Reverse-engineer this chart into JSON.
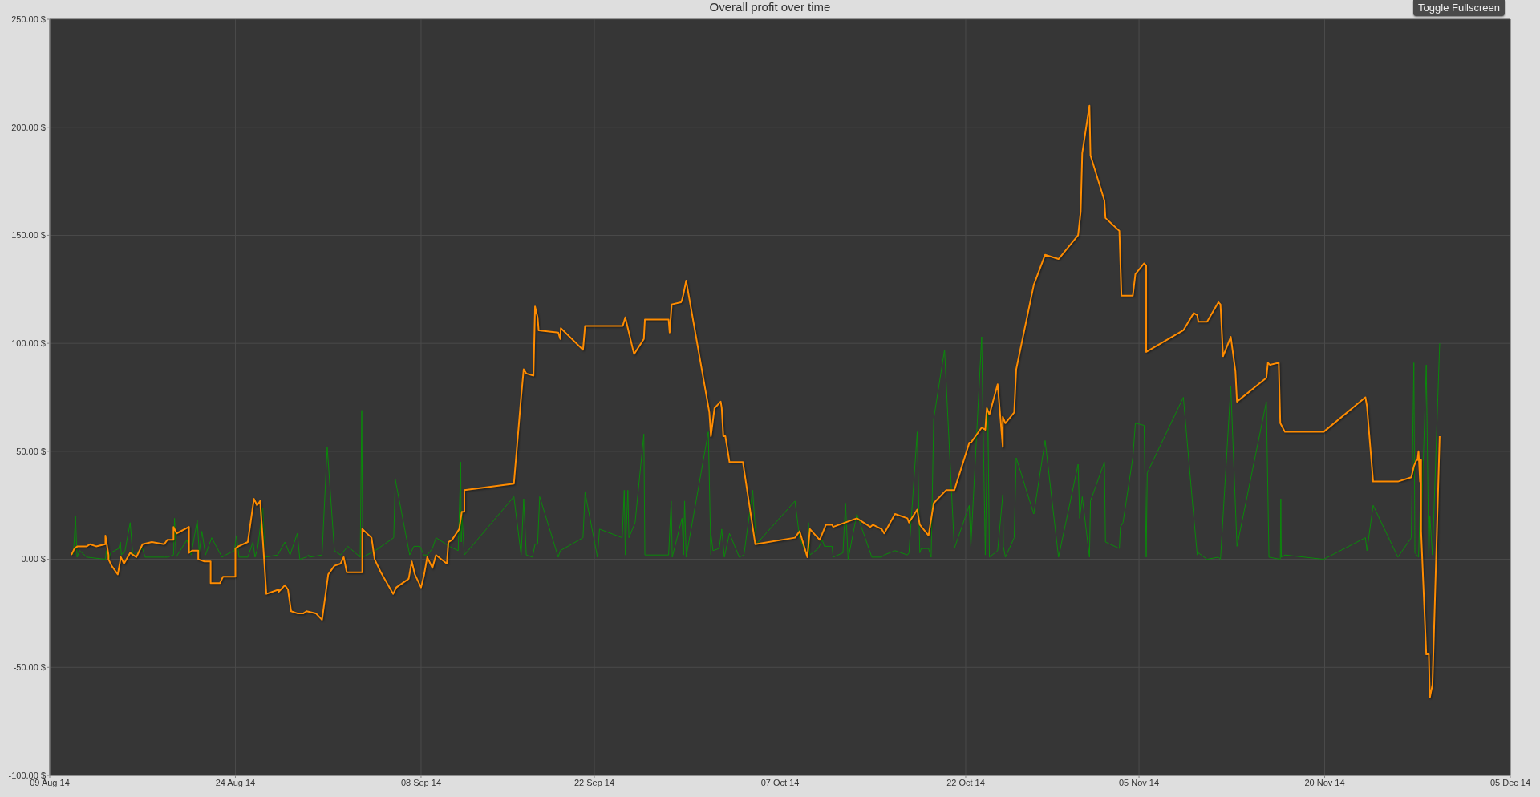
{
  "chart_data": {
    "type": "line",
    "title": "Overall profit over time",
    "annotations": [
      "Toggle Fullscreen"
    ],
    "xlim": [
      "2014-08-09",
      "2014-12-05"
    ],
    "xticks": [
      {
        "value": "2014-08-09",
        "label": "09 Aug 14"
      },
      {
        "value": "2014-08-24",
        "label": "24 Aug 14"
      },
      {
        "value": "2014-09-08",
        "label": "08 Sep 14"
      },
      {
        "value": "2014-09-22",
        "label": "22 Sep 14"
      },
      {
        "value": "2014-10-07",
        "label": "07 Oct 14"
      },
      {
        "value": "2014-10-22",
        "label": "22 Oct 14"
      },
      {
        "value": "2014-11-05",
        "label": "05 Nov 14"
      },
      {
        "value": "2014-11-20",
        "label": "20 Nov 14"
      },
      {
        "value": "2014-12-05",
        "label": "05 Dec 14"
      }
    ],
    "ylim": [
      -100,
      250
    ],
    "yticks": [
      {
        "value": -100,
        "label": "-100.00 $"
      },
      {
        "value": -50,
        "label": "-50.00 $"
      },
      {
        "value": 0,
        "label": "0.00 $"
      },
      {
        "value": 50,
        "label": "50.00 $"
      },
      {
        "value": 100,
        "label": "100.00 $"
      },
      {
        "value": 150,
        "label": "150.00 $"
      },
      {
        "value": 200,
        "label": "200.00 $"
      },
      {
        "value": 250,
        "label": "250.00 $"
      }
    ],
    "grid": true,
    "series": [
      {
        "color": "#0a8a0a",
        "x": [
          "2014-08-10T22:00",
          "2014-08-11T02:00",
          "2014-08-11T05:00",
          "2014-08-11T10:00",
          "2014-08-12T00:00",
          "2014-08-13T12:00",
          "2014-08-13T14:00",
          "2014-08-13T19:00",
          "2014-08-13T22:00",
          "2014-08-14T14:00",
          "2014-08-14T17:00",
          "2014-08-14T19:00",
          "2014-08-15T02:00",
          "2014-08-15T12:00",
          "2014-08-15T17:00",
          "2014-08-16T12:00",
          "2014-08-16T17:00",
          "2014-08-18T07:00",
          "2014-08-18T12:00",
          "2014-08-19T00:00",
          "2014-08-19T02:00",
          "2014-08-19T05:00",
          "2014-08-20T02:00",
          "2014-08-20T10:00",
          "2014-08-20T22:00",
          "2014-08-21T02:00",
          "2014-08-21T07:00",
          "2014-08-21T14:00",
          "2014-08-22T02:00",
          "2014-08-22T22:00",
          "2014-08-23T05:00",
          "2014-08-23T22:00",
          "2014-08-24T02:00",
          "2014-08-24T07:00",
          "2014-08-25T00:00",
          "2014-08-25T10:00",
          "2014-08-25T14:00",
          "2014-08-25T19:00",
          "2014-08-26T05:00",
          "2014-08-26T10:00",
          "2014-08-27T10:00",
          "2014-08-28T00:00",
          "2014-08-28T10:00",
          "2014-08-29T00:00",
          "2014-08-29T05:00",
          "2014-08-29T17:00",
          "2014-08-29T22:00",
          "2014-08-30T00:00",
          "2014-08-31T00:00",
          "2014-08-31T10:00",
          "2014-09-01T00:00",
          "2014-09-01T12:00",
          "2014-09-02T02:00",
          "2014-09-03T02:00",
          "2014-09-03T05:00",
          "2014-09-03T07:00",
          "2014-09-04T07:00",
          "2014-09-05T19:00",
          "2014-09-05T22:00",
          "2014-09-07T02:00",
          "2014-09-07T10:00",
          "2014-09-07T22:00",
          "2014-09-08T05:00",
          "2014-09-08T12:00",
          "2014-09-08T22:00",
          "2014-09-09T05:00",
          "2014-09-10T07:00",
          "2014-09-11T00:00",
          "2014-09-11T05:00",
          "2014-09-11T06:00",
          "2014-09-11T07:00",
          "2014-09-11T12:00",
          "2014-09-15T12:00",
          "2014-09-16T02:00",
          "2014-09-16T07:00",
          "2014-09-16T12:00",
          "2014-09-17T00:00",
          "2014-09-17T05:00",
          "2014-09-17T10:00",
          "2014-09-17T14:00",
          "2014-09-19T02:00",
          "2014-09-19T06:00",
          "2014-09-21T02:00",
          "2014-09-21T06:00",
          "2014-09-22T06:00",
          "2014-09-22T10:00",
          "2014-09-24T06:00",
          "2014-09-24T10:00",
          "2014-09-24T12:00",
          "2014-09-24T17:00",
          "2014-09-24T19:00",
          "2014-09-25T07:00",
          "2014-09-26T00:00",
          "2014-09-26T02:00",
          "2014-09-28T00:00",
          "2014-09-28T05:00",
          "2014-09-28T07:00",
          "2014-09-29T02:00",
          "2014-09-29T05:00",
          "2014-09-29T07:00",
          "2014-09-29T10:00",
          "2014-10-01T05:00",
          "2014-10-01T10:00",
          "2014-10-01T10:00",
          "2014-10-01T14:00",
          "2014-10-02T02:00",
          "2014-10-02T07:00",
          "2014-10-02T12:00",
          "2014-10-02T22:00",
          "2014-10-03T17:00",
          "2014-10-04T02:00",
          "2014-10-04T19:00",
          "2014-10-05T02:00",
          "2014-10-08T05:00",
          "2014-10-08T14:00",
          "2014-10-09T05:00",
          "2014-10-09T07:00",
          "2014-10-09T10:00",
          "2014-10-10T02:00",
          "2014-10-10T10:00",
          "2014-10-10T14:00",
          "2014-10-11T05:00",
          "2014-10-11T07:00",
          "2014-10-12T02:00",
          "2014-10-12T07:00",
          "2014-10-12T12:00",
          "2014-10-13T05:00",
          "2014-10-14T10:00",
          "2014-10-15T05:00",
          "2014-10-15T10:00",
          "2014-10-16T07:00",
          "2014-10-17T07:00",
          "2014-10-17T10:00",
          "2014-10-18T02:00",
          "2014-10-18T07:00",
          "2014-10-18T10:00",
          "2014-10-19T00:00",
          "2014-10-19T05:00",
          "2014-10-19T10:00",
          "2014-10-20T07:00",
          "2014-10-21T02:00",
          "2014-10-22T07:00",
          "2014-10-22T10:00",
          "2014-10-23T07:00",
          "2014-10-23T14:00",
          "2014-10-23T19:00",
          "2014-10-23T22:00",
          "2014-10-24T14:00",
          "2014-10-25T00:00",
          "2014-10-25T01:00",
          "2014-10-25T05:00",
          "2014-10-25T22:00",
          "2014-10-26T02:00",
          "2014-10-27T12:00",
          "2014-10-28T10:00",
          "2014-10-29T12:00",
          "2014-10-31T02:00",
          "2014-10-31T05:00",
          "2014-10-31T10:00",
          "2014-11-01T00:00",
          "2014-11-01T02:00",
          "2014-11-02T05:00",
          "2014-11-02T07:00",
          "2014-11-03T10:00",
          "2014-11-03T12:00",
          "2014-11-03T17:00",
          "2014-11-04T12:00",
          "2014-11-04T17:00",
          "2014-11-05T10:00",
          "2014-11-05T14:00",
          "2014-11-05T16:00",
          "2014-11-07T00:00",
          "2014-11-08T14:00",
          "2014-11-09T10:00",
          "2014-11-09T17:00",
          "2014-11-09T19:00",
          "2014-11-10T12:00",
          "2014-11-11T10:00",
          "2014-11-11T14:00",
          "2014-11-12T10:00",
          "2014-11-12T22:00",
          "2014-11-15T07:00",
          "2014-11-15T12:00",
          "2014-11-16T10:00",
          "2014-11-16T11:00",
          "2014-11-16T12:00",
          "2014-11-16T19:00",
          "2014-11-19T22:00",
          "2014-11-23T07:00",
          "2014-11-23T10:00",
          "2014-11-23T22:00",
          "2014-11-25T22:00",
          "2014-11-27T00:00",
          "2014-11-27T05:00",
          "2014-11-27T07:00",
          "2014-11-27T14:00",
          "2014-11-27T17:00",
          "2014-11-27T19:00",
          "2014-11-28T05:00",
          "2014-11-28T10:00",
          "2014-11-28T12:00",
          "2014-11-28T17:00",
          "2014-11-29T07:00"
        ],
        "values": [
          2,
          20,
          1,
          4,
          1,
          0,
          4,
          0,
          3,
          5,
          8,
          2,
          4,
          17,
          2,
          5,
          1,
          1,
          1,
          2,
          19,
          1,
          9,
          2,
          18,
          3,
          13,
          2,
          10,
          1,
          2,
          4,
          11,
          1,
          1,
          8,
          1,
          5,
          24,
          1,
          2,
          8,
          2,
          12,
          0,
          1,
          2,
          1,
          2,
          52,
          4,
          2,
          6,
          1,
          69,
          1,
          4,
          10,
          37,
          2,
          6,
          6,
          2,
          2,
          5,
          10,
          6,
          4,
          45,
          8,
          22,
          2,
          29,
          2,
          28,
          2,
          1,
          7,
          7,
          29,
          1,
          4,
          10,
          31,
          1,
          14,
          10,
          32,
          2,
          32,
          10,
          17,
          58,
          2,
          2,
          27,
          1,
          19,
          2,
          27,
          1,
          59,
          2,
          12,
          4,
          5,
          14,
          1,
          12,
          1,
          2,
          32,
          7,
          27,
          10,
          1,
          17,
          2,
          5,
          9,
          6,
          6,
          1,
          3,
          26,
          0,
          21,
          1,
          1,
          2,
          4,
          2,
          3,
          59,
          3,
          5,
          5,
          1,
          65,
          97,
          5,
          25,
          6,
          103,
          2,
          70,
          1,
          4,
          30,
          6,
          1,
          10,
          47,
          21,
          55,
          1,
          44,
          19,
          29,
          1,
          27,
          45,
          8,
          5,
          15,
          17,
          47,
          63,
          62,
          1,
          40,
          56,
          75,
          20,
          2,
          3,
          0,
          1,
          0,
          80,
          6,
          73,
          1,
          0,
          28,
          1,
          2,
          0,
          10,
          4,
          25,
          1,
          10,
          91,
          3,
          1,
          23,
          13,
          90,
          1,
          20,
          2,
          100
        ]
      },
      {
        "color": "#ff8c00",
        "x": [
          "2014-08-10T18:00",
          "2014-08-11T00:00",
          "2014-08-11T06:00",
          "2014-08-12T00:00",
          "2014-08-12T06:00",
          "2014-08-12T18:00",
          "2014-08-13T12:00",
          "2014-08-13T12:00",
          "2014-08-13T18:00",
          "2014-08-13T18:00",
          "2014-08-14T00:00",
          "2014-08-14T12:00",
          "2014-08-14T18:00",
          "2014-08-15T00:00",
          "2014-08-15T12:00",
          "2014-08-16T00:00",
          "2014-08-16T12:00",
          "2014-08-17T06:00",
          "2014-08-18T06:00",
          "2014-08-18T12:00",
          "2014-08-19T00:00",
          "2014-08-19T00:00",
          "2014-08-19T06:00",
          "2014-08-20T06:00",
          "2014-08-20T06:00",
          "2014-08-20T12:00",
          "2014-08-21T00:00",
          "2014-08-21T00:00",
          "2014-08-21T12:00",
          "2014-08-22T00:00",
          "2014-08-22T00:00",
          "2014-08-22T18:00",
          "2014-08-23T00:00",
          "2014-08-24T00:00",
          "2014-08-24T00:00",
          "2014-08-24T06:00",
          "2014-08-25T00:00",
          "2014-08-25T06:00",
          "2014-08-25T12:00",
          "2014-08-25T18:00",
          "2014-08-26T00:00",
          "2014-08-26T06:00",
          "2014-08-26T12:00",
          "2014-08-27T12:00",
          "2014-08-27T12:00",
          "2014-08-28T00:00",
          "2014-08-28T06:00",
          "2014-08-28T12:00",
          "2014-08-29T00:00",
          "2014-08-29T12:00",
          "2014-08-29T18:00",
          "2014-08-30T12:00",
          "2014-08-31T00:00",
          "2014-08-31T12:00",
          "2014-09-01T00:00",
          "2014-09-01T12:00",
          "2014-09-01T18:00",
          "2014-09-02T00:00",
          "2014-09-03T06:00",
          "2014-09-03T06:00",
          "2014-09-04T00:00",
          "2014-09-04T06:00",
          "2014-09-04T18:00",
          "2014-09-05T18:00",
          "2014-09-06T00:00",
          "2014-09-07T00:00",
          "2014-09-07T06:00",
          "2014-09-07T12:00",
          "2014-09-08T00:00",
          "2014-09-08T06:00",
          "2014-09-08T12:00",
          "2014-09-08T22:00",
          "2014-09-09T05:00",
          "2014-09-10T02:00",
          "2014-09-10T05:00",
          "2014-09-10T12:00",
          "2014-09-11T02:00",
          "2014-09-11T07:00",
          "2014-09-11T12:00",
          "2014-09-11T12:00",
          "2014-09-15T12:00",
          "2014-09-16T02:00",
          "2014-09-16T07:00",
          "2014-09-16T12:00",
          "2014-09-17T02:00",
          "2014-09-17T05:00",
          "2014-09-17T10:00",
          "2014-09-17T12:00",
          "2014-09-19T02:00",
          "2014-09-19T06:00",
          "2014-09-19T07:00",
          "2014-09-21T02:00",
          "2014-09-21T06:00",
          "2014-09-22T06:00",
          "2014-09-24T07:00",
          "2014-09-24T12:00",
          "2014-09-24T19:00",
          "2014-09-25T05:00",
          "2014-09-26T00:00",
          "2014-09-26T02:00",
          "2014-09-28T00:00",
          "2014-09-28T02:00",
          "2014-09-28T06:00",
          "2014-09-29T00:00",
          "2014-09-29T02:00",
          "2014-09-29T05:00",
          "2014-09-29T10:00",
          "2014-10-01T07:00",
          "2014-10-01T10:00",
          "2014-10-01T17:00",
          "2014-10-02T05:00",
          "2014-10-02T07:00",
          "2014-10-02T10:00",
          "2014-10-02T14:00",
          "2014-10-02T22:00",
          "2014-10-04T00:00",
          "2014-10-05T00:00",
          "2014-10-08T05:00",
          "2014-10-08T14:00",
          "2014-10-09T05:00",
          "2014-10-09T10:00",
          "2014-10-10T05:00",
          "2014-10-10T17:00",
          "2014-10-11T05:00",
          "2014-10-11T07:00",
          "2014-10-13T05:00",
          "2014-10-14T07:00",
          "2014-10-14T12:00",
          "2014-10-15T05:00",
          "2014-10-15T10:00",
          "2014-10-16T07:00",
          "2014-10-17T07:00",
          "2014-10-17T10:00",
          "2014-10-18T02:00",
          "2014-10-18T07:00",
          "2014-10-19T00:00",
          "2014-10-19T10:00",
          "2014-10-20T10:00",
          "2014-10-21T02:00",
          "2014-10-22T07:00",
          "2014-10-22T10:00",
          "2014-10-23T07:00",
          "2014-10-23T14:00",
          "2014-10-23T17:00",
          "2014-10-23T22:00",
          "2014-10-24T14:00",
          "2014-10-25T00:00",
          "2014-10-25T00:00",
          "2014-10-25T05:00",
          "2014-10-25T22:00",
          "2014-10-26T02:00",
          "2014-10-27T12:00",
          "2014-10-28T10:00",
          "2014-10-29T12:00",
          "2014-10-31T02:00",
          "2014-10-31T07:00",
          "2014-10-31T10:00",
          "2014-11-01T00:00",
          "2014-11-01T02:00",
          "2014-11-02T05:00",
          "2014-11-02T07:00",
          "2014-11-03T10:00",
          "2014-11-03T14:00",
          "2014-11-04T12:00",
          "2014-11-04T17:00",
          "2014-11-05T10:00",
          "2014-11-05T14:00",
          "2014-11-05T14:00",
          "2014-11-08T14:00",
          "2014-11-09T10:00",
          "2014-11-09T17:00",
          "2014-11-09T19:00",
          "2014-11-10T12:00",
          "2014-11-11T10:00",
          "2014-11-11T14:00",
          "2014-11-11T19:00",
          "2014-11-12T10:00",
          "2014-11-12T19:00",
          "2014-11-12T22:00",
          "2014-11-15T07:00",
          "2014-11-15T10:00",
          "2014-11-15T14:00",
          "2014-11-16T07:00",
          "2014-11-16T10:00",
          "2014-11-16T19:00",
          "2014-11-19T22:00",
          "2014-11-23T07:00",
          "2014-11-23T10:00",
          "2014-11-23T22:00",
          "2014-11-25T22:00",
          "2014-11-27T00:00",
          "2014-11-27T05:00",
          "2014-11-27T10:00",
          "2014-11-27T12:00",
          "2014-11-27T14:00",
          "2014-11-27T17:00",
          "2014-11-27T19:00",
          "2014-11-27T19:00",
          "2014-11-28T05:00",
          "2014-11-28T10:00",
          "2014-11-28T12:00",
          "2014-11-28T17:00",
          "2014-11-29T07:00"
        ],
        "values": [
          2,
          5,
          6,
          6,
          7,
          6,
          7,
          11,
          2,
          0,
          -3,
          -7,
          1,
          -2,
          3,
          1,
          7,
          8,
          7,
          9,
          9,
          15,
          12,
          15,
          3,
          4,
          4,
          0,
          -1,
          -1,
          -11,
          -11,
          -8,
          -8,
          5,
          6,
          8,
          18,
          28,
          25,
          27,
          6,
          -16,
          -14,
          -15,
          -12,
          -14,
          -24,
          -25,
          -25,
          -24,
          -25,
          -28,
          -7,
          -3,
          -2,
          1,
          -6,
          -6,
          14,
          10,
          0,
          -6,
          -16,
          -13,
          -9,
          -1,
          -7,
          -13,
          -7,
          1,
          -4,
          2,
          -2,
          8,
          9,
          14,
          22,
          22,
          32,
          35,
          75,
          88,
          86,
          85,
          117,
          112,
          106,
          105,
          102,
          107,
          97,
          108,
          108,
          108,
          112,
          105,
          95,
          102,
          111,
          111,
          105,
          118,
          119,
          120,
          123,
          129,
          68,
          57,
          70,
          73,
          70,
          57,
          57,
          45,
          45,
          7,
          10,
          13,
          1,
          14,
          9,
          16,
          16,
          15,
          19,
          15,
          16,
          14,
          12,
          21,
          19,
          17,
          23,
          16,
          11,
          26,
          32,
          32,
          54,
          54,
          61,
          60,
          70,
          67,
          81,
          52,
          66,
          63,
          68,
          88,
          127,
          141,
          139,
          150,
          161,
          188,
          210,
          187,
          166,
          158,
          152,
          122,
          122,
          132,
          137,
          136,
          96,
          106,
          114,
          113,
          110,
          110,
          119,
          118,
          94,
          103,
          87,
          73,
          84,
          91,
          90,
          91,
          63,
          59,
          59,
          75,
          71,
          36,
          36,
          38,
          43,
          46,
          46,
          50,
          36,
          46,
          13,
          -44,
          -44,
          -64,
          -58,
          57
        ]
      }
    ]
  }
}
